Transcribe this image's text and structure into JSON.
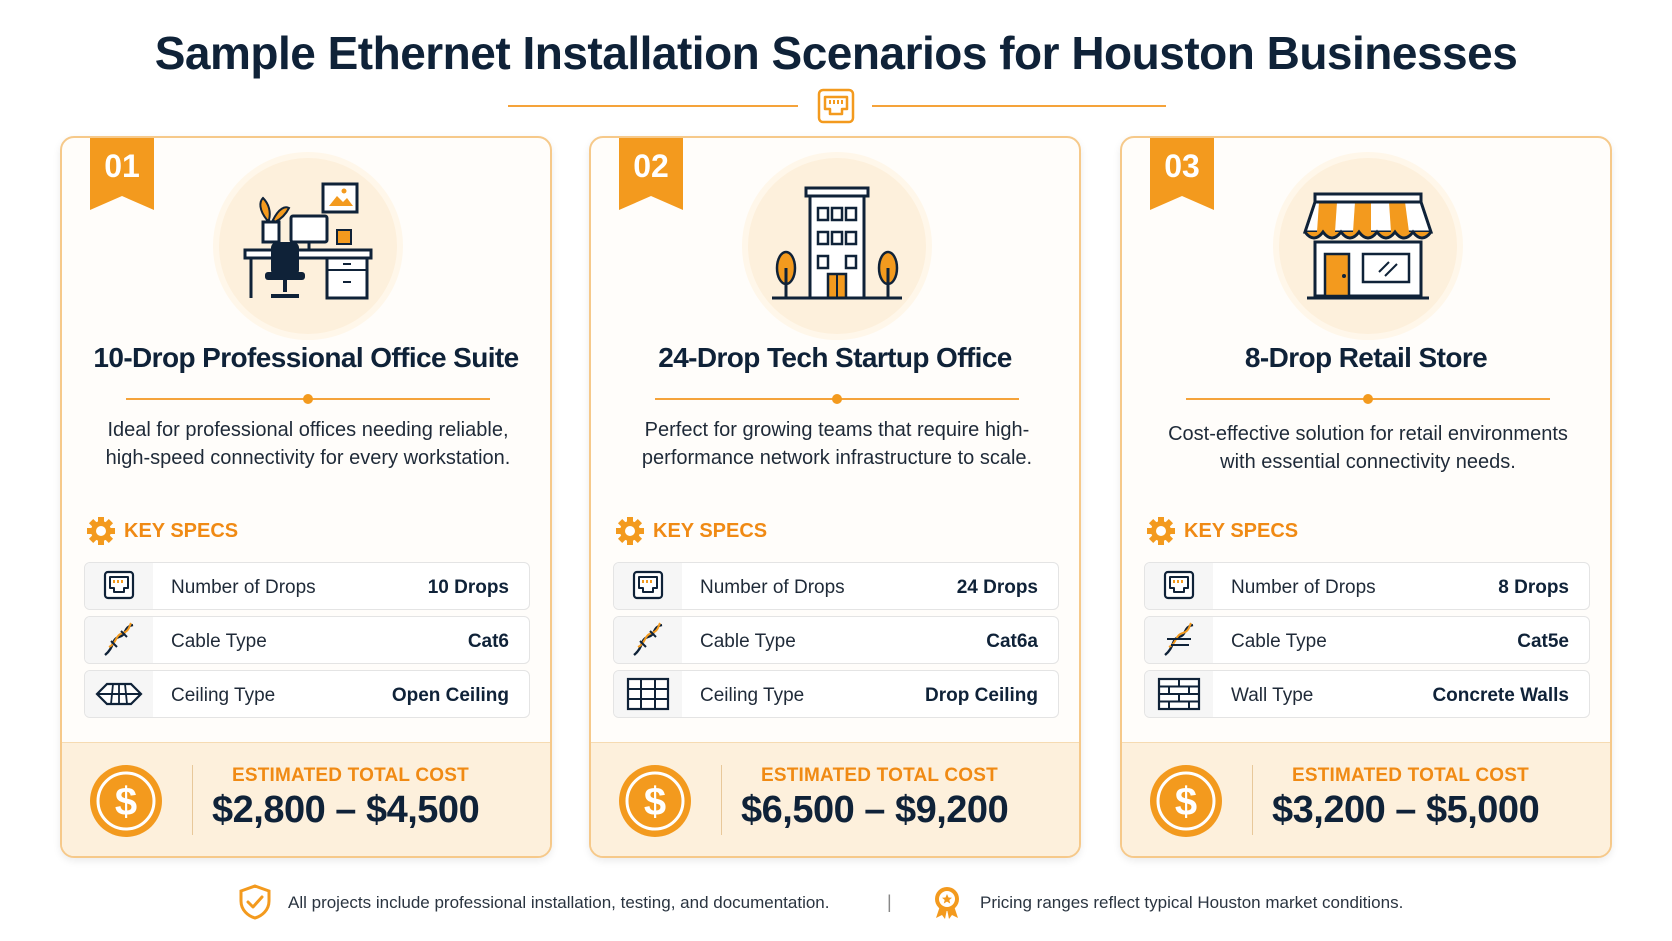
{
  "title": "Sample Ethernet Installation Scenarios for Houston Businesses",
  "colors": {
    "accent": "#f39a1e",
    "navy": "#0f2238",
    "soft": "#fdf0dc"
  },
  "specs_heading": "KEY SPECS",
  "cost_label": "ESTIMATED TOTAL COST",
  "cards": [
    {
      "number": "01",
      "hero_icon": "office-desk-icon",
      "title": "10-Drop Professional Office Suite",
      "description": "Ideal for professional offices needing reliable, high-speed connectivity for every workstation.",
      "specs": [
        {
          "icon": "ethernet-port-icon",
          "label": "Number of Drops",
          "value": "10 Drops"
        },
        {
          "icon": "cable-icon",
          "label": "Cable Type",
          "value": "Cat6"
        },
        {
          "icon": "open-ceiling-icon",
          "label": "Ceiling Type",
          "value": "Open Ceiling"
        }
      ],
      "cost": "$2,800 – $4,500"
    },
    {
      "number": "02",
      "hero_icon": "office-building-icon",
      "title": "24-Drop Tech Startup Office",
      "description": "Perfect for growing teams that require high-performance network infrastructure to scale.",
      "specs": [
        {
          "icon": "ethernet-port-icon",
          "label": "Number of Drops",
          "value": "24 Drops"
        },
        {
          "icon": "cable-icon",
          "label": "Cable Type",
          "value": "Cat6a"
        },
        {
          "icon": "drop-ceiling-icon",
          "label": "Ceiling Type",
          "value": "Drop Ceiling"
        }
      ],
      "cost": "$6,500 – $9,200"
    },
    {
      "number": "03",
      "hero_icon": "retail-store-icon",
      "title": "8-Drop Retail Store",
      "description": "Cost-effective solution for retail environments with essential connectivity needs.",
      "specs": [
        {
          "icon": "ethernet-port-icon",
          "label": "Number of Drops",
          "value": "8 Drops"
        },
        {
          "icon": "cable-icon",
          "label": "Cable Type",
          "value": "Cat5e"
        },
        {
          "icon": "brick-wall-icon",
          "label": "Wall Type",
          "value": "Concrete Walls"
        }
      ],
      "cost": "$3,200 – $5,000"
    }
  ],
  "footer": {
    "note1_icon": "shield-check-icon",
    "note1": "All projects include professional installation, testing, and documentation.",
    "separator": "|",
    "note2_icon": "award-badge-icon",
    "note2": "Pricing ranges reflect typical Houston market conditions."
  }
}
